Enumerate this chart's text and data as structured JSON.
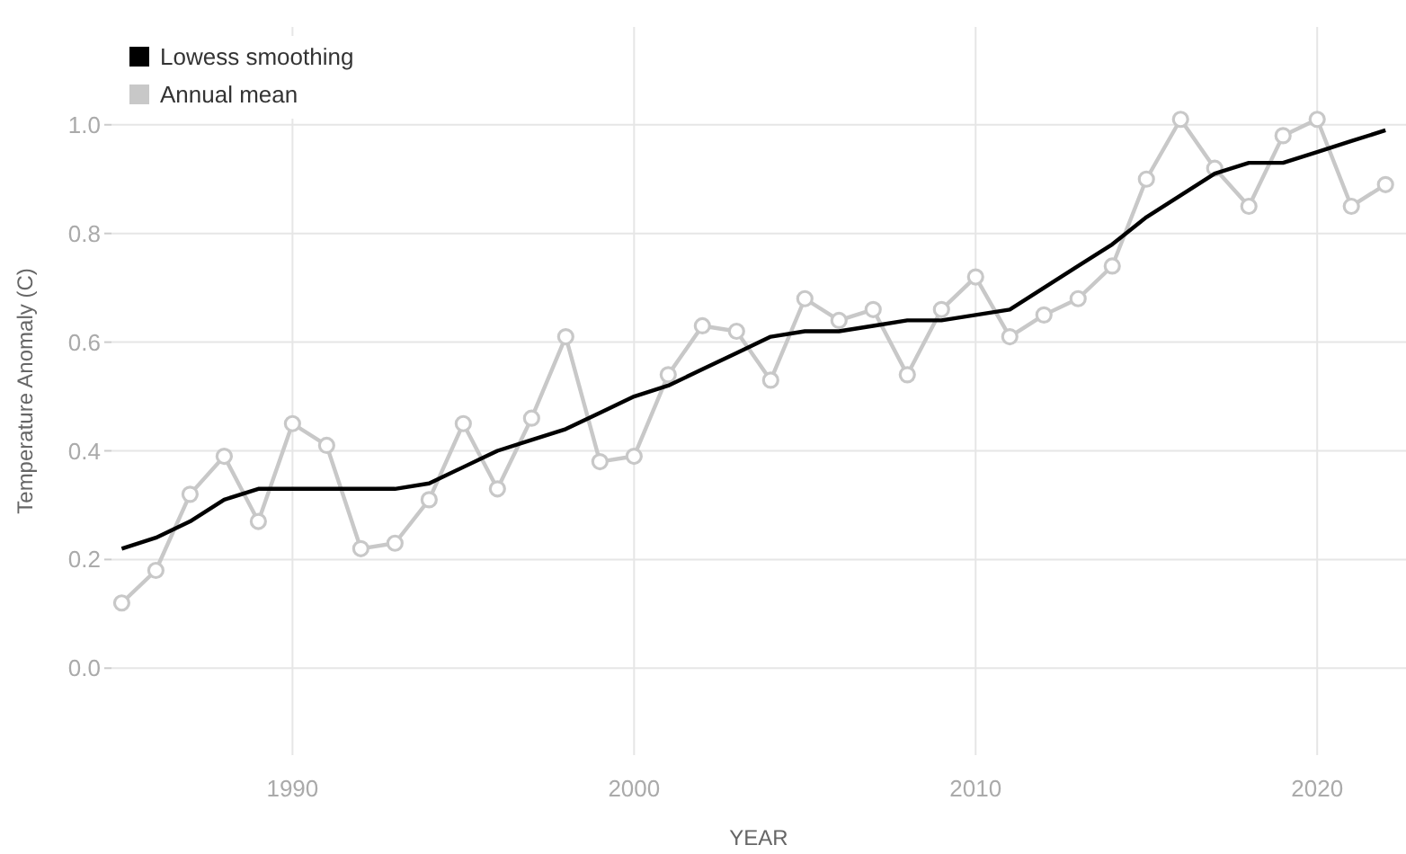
{
  "chart_data": {
    "type": "line",
    "xlabel": "YEAR",
    "ylabel": "Temperature Anomaly (C)",
    "x": [
      1985,
      1986,
      1987,
      1988,
      1989,
      1990,
      1991,
      1992,
      1993,
      1994,
      1995,
      1996,
      1997,
      1998,
      1999,
      2000,
      2001,
      2002,
      2003,
      2004,
      2005,
      2006,
      2007,
      2008,
      2009,
      2010,
      2011,
      2012,
      2013,
      2014,
      2015,
      2016,
      2017,
      2018,
      2019,
      2020,
      2021,
      2022
    ],
    "series": [
      {
        "name": "Lowess smoothing",
        "color": "#000000",
        "marker": "none",
        "values": [
          0.22,
          0.24,
          0.27,
          0.31,
          0.33,
          0.33,
          0.33,
          0.33,
          0.33,
          0.34,
          0.37,
          0.4,
          0.42,
          0.44,
          0.47,
          0.5,
          0.52,
          0.55,
          0.58,
          0.61,
          0.62,
          0.62,
          0.63,
          0.64,
          0.64,
          0.65,
          0.66,
          0.7,
          0.74,
          0.78,
          0.83,
          0.87,
          0.91,
          0.93,
          0.93,
          0.95,
          0.97,
          0.99
        ]
      },
      {
        "name": "Annual mean",
        "color": "#c8c8c8",
        "marker": "circle",
        "values": [
          0.12,
          0.18,
          0.32,
          0.39,
          0.27,
          0.45,
          0.41,
          0.22,
          0.23,
          0.31,
          0.45,
          0.33,
          0.46,
          0.61,
          0.38,
          0.39,
          0.54,
          0.63,
          0.62,
          0.53,
          0.68,
          0.64,
          0.66,
          0.54,
          0.66,
          0.72,
          0.61,
          0.65,
          0.68,
          0.74,
          0.9,
          1.01,
          0.92,
          0.85,
          0.98,
          1.01,
          0.85,
          0.89
        ]
      }
    ],
    "xlim": [
      1984.7,
      2022.6
    ],
    "xticks": [
      1990,
      2000,
      2010,
      2020
    ],
    "ylim": [
      -0.16,
      1.18
    ],
    "yticks": [
      {
        "value": 0,
        "label": "0.0"
      },
      {
        "value": 0.2,
        "label": "0.2"
      },
      {
        "value": 0.4,
        "label": "0.4"
      },
      {
        "value": 0.6,
        "label": "0.6"
      },
      {
        "value": 0.8,
        "label": "0.8"
      },
      {
        "value": 1,
        "label": "1.0"
      }
    ],
    "grid": true,
    "legend": "top left"
  }
}
